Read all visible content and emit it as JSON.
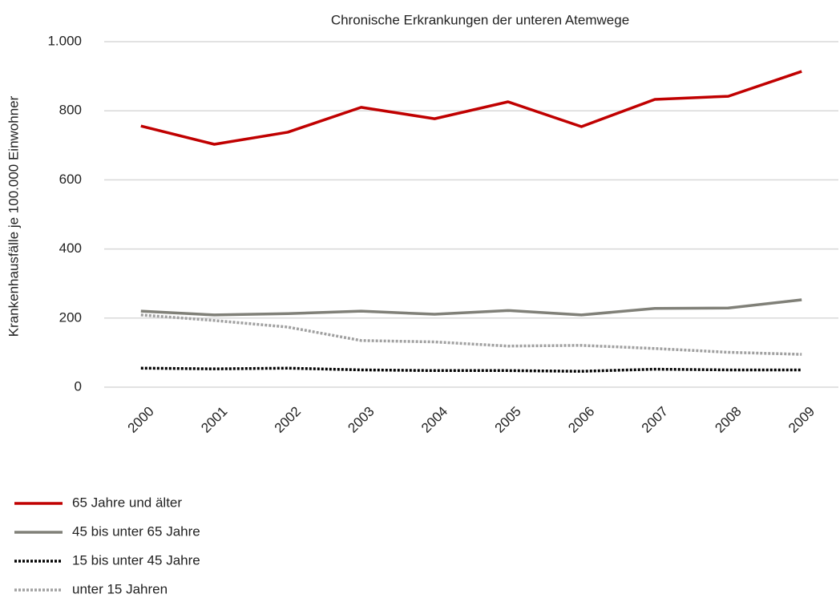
{
  "chart_data": {
    "type": "line",
    "title": "Chronische Erkrankungen der unteren Atemwege",
    "y_label": "Krankenhausfälle je 100.000 Einwohner",
    "categories": [
      "2000",
      "2001",
      "2002",
      "2003",
      "2004",
      "2005",
      "2006",
      "2007",
      "2008",
      "2009"
    ],
    "series": [
      {
        "name": "65 Jahre und älter",
        "color": "#c00000",
        "style": "solid",
        "values": [
          756,
          703,
          738,
          810,
          777,
          826,
          754,
          833,
          842,
          914
        ]
      },
      {
        "name": "45 bis unter 65 Jahre",
        "color": "#808078",
        "style": "solid",
        "values": [
          220,
          209,
          213,
          220,
          211,
          222,
          209,
          228,
          229,
          253
        ]
      },
      {
        "name": "15 bis unter 45 Jahre",
        "color": "#000000",
        "style": "dotted",
        "values": [
          55,
          53,
          55,
          50,
          48,
          48,
          46,
          52,
          50,
          50
        ]
      },
      {
        "name": "unter 15 Jahren",
        "color": "#a0a0a0",
        "style": "dotted",
        "values": [
          209,
          193,
          174,
          135,
          131,
          119,
          121,
          112,
          101,
          95
        ]
      }
    ],
    "ylim": [
      0,
      1000
    ],
    "yticks": [
      0,
      200,
      400,
      600,
      800,
      {
        "value": 1000,
        "label": "1.000"
      }
    ],
    "grid": true
  }
}
